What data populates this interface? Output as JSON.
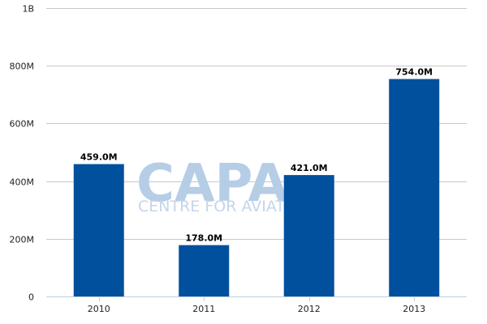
{
  "chart_data": {
    "type": "bar",
    "categories": [
      "2010",
      "2011",
      "2012",
      "2013"
    ],
    "values": [
      459000000,
      178000000,
      421000000,
      754000000
    ],
    "data_labels": [
      "459.0M",
      "178.0M",
      "421.0M",
      "754.0M"
    ],
    "ylim": [
      0,
      1000000000
    ],
    "y_ticks": [
      {
        "value": 0,
        "label": "0"
      },
      {
        "value": 200000000,
        "label": "200M"
      },
      {
        "value": 400000000,
        "label": "400M"
      },
      {
        "value": 600000000,
        "label": "600M"
      },
      {
        "value": 800000000,
        "label": "800M"
      },
      {
        "value": 1000000000,
        "label": "1B"
      }
    ],
    "grid": true,
    "bar_color": "#00509e",
    "gridline_color": "#c8c8c8"
  },
  "watermark": {
    "brand": "CAPA",
    "tagline": "CENTRE FOR AVIATION"
  }
}
